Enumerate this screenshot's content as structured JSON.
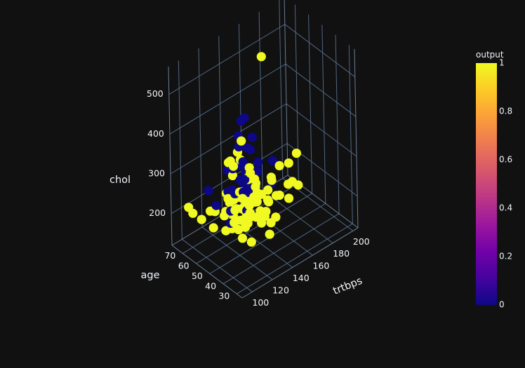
{
  "chart_data": {
    "type": "scatter",
    "title": "",
    "axes": {
      "x": {
        "label": "trtbps",
        "range": [
          90,
          205
        ],
        "ticks": [
          100,
          120,
          140,
          160,
          180,
          200
        ]
      },
      "y": {
        "label": "age",
        "range": [
          26,
          78
        ],
        "ticks": [
          30,
          40,
          50,
          60,
          70
        ]
      },
      "z": {
        "label": "chol",
        "range": [
          120,
          570
        ],
        "ticks": [
          200,
          300,
          400,
          500
        ]
      }
    },
    "grid": true,
    "colorbar": {
      "title": "output",
      "range": [
        0,
        1
      ],
      "ticks": [
        "0",
        "0.2",
        "0.4",
        "0.6",
        "0.8",
        "1"
      ],
      "colorscale": [
        "#0d0887",
        "#46039f",
        "#7201a8",
        "#9c179e",
        "#bd3786",
        "#d8576b",
        "#ed7953",
        "#fb9f3a",
        "#fdca26",
        "#f0f921"
      ]
    },
    "series": [
      {
        "value": 1,
        "color": "#f0f921",
        "points": [
          [
            150,
            54,
            564
          ],
          [
            110,
            46,
            370
          ],
          [
            130,
            58,
            344
          ],
          [
            120,
            41,
            350
          ],
          [
            130,
            55,
            380
          ],
          [
            115,
            52,
            360
          ],
          [
            150,
            42,
            320
          ],
          [
            130,
            65,
            300
          ],
          [
            128,
            44,
            315
          ],
          [
            108,
            38,
            312
          ],
          [
            130,
            56,
            330
          ],
          [
            140,
            57,
            292
          ],
          [
            120,
            39,
            290
          ],
          [
            150,
            48,
            268
          ],
          [
            112,
            52,
            270
          ],
          [
            140,
            58,
            265
          ],
          [
            130,
            45,
            290
          ],
          [
            130,
            62,
            275
          ],
          [
            140,
            58,
            260
          ],
          [
            130,
            44,
            255
          ],
          [
            120,
            37,
            249
          ],
          [
            138,
            50,
            250
          ],
          [
            160,
            56,
            240
          ],
          [
            120,
            57,
            235
          ],
          [
            140,
            43,
            242
          ],
          [
            130,
            51,
            238
          ],
          [
            120,
            52,
            232
          ],
          [
            150,
            60,
            230
          ],
          [
            145,
            41,
            255
          ],
          [
            125,
            45,
            222
          ],
          [
            110,
            43,
            218
          ],
          [
            120,
            53,
            226
          ],
          [
            135,
            64,
            210
          ],
          [
            135,
            34,
            234
          ],
          [
            118,
            42,
            224
          ],
          [
            140,
            54,
            226
          ],
          [
            112,
            62,
            212
          ],
          [
            130,
            67,
            217
          ],
          [
            160,
            50,
            210
          ],
          [
            102,
            71,
            200
          ],
          [
            130,
            35,
            196
          ],
          [
            125,
            58,
            189
          ],
          [
            150,
            61,
            180
          ],
          [
            138,
            40,
            200
          ],
          [
            118,
            44,
            209
          ],
          [
            132,
            51,
            206
          ],
          [
            115,
            50,
            210
          ],
          [
            140,
            46,
            198
          ],
          [
            120,
            60,
            205
          ],
          [
            108,
            52,
            233
          ],
          [
            125,
            48,
            214
          ],
          [
            130,
            57,
            246
          ],
          [
            120,
            45,
            228
          ],
          [
            110,
            64,
            211
          ],
          [
            150,
            51,
            236
          ],
          [
            138,
            65,
            200
          ],
          [
            100,
            63,
            208
          ],
          [
            180,
            52,
            280
          ],
          [
            115,
            44,
            186
          ],
          [
            108,
            51,
            198
          ],
          [
            172,
            45,
            230
          ],
          [
            128,
            60,
            222
          ],
          [
            150,
            57,
            168
          ],
          [
            105,
            58,
            192
          ],
          [
            140,
            71,
            150
          ],
          [
            160,
            59,
            175
          ],
          [
            112,
            35,
            204
          ],
          [
            132,
            39,
            240
          ],
          [
            125,
            46,
            248
          ],
          [
            94,
            68,
            235
          ],
          [
            180,
            58,
            240
          ],
          [
            128,
            54,
            215
          ],
          [
            135,
            59,
            234
          ],
          [
            118,
            54,
            180
          ],
          [
            160,
            43,
            220
          ],
          [
            120,
            46,
            244
          ],
          [
            124,
            52,
            197
          ],
          [
            170,
            51,
            220
          ],
          [
            145,
            52,
            230
          ],
          [
            165,
            44,
            252
          ],
          [
            130,
            54,
            216
          ],
          [
            130,
            41,
            209
          ]
        ]
      },
      {
        "value": 0,
        "color": "#0d0887",
        "points": [
          [
            130,
            55,
            430
          ],
          [
            140,
            60,
            410
          ],
          [
            135,
            61,
            370
          ],
          [
            130,
            57,
            360
          ],
          [
            150,
            62,
            341
          ],
          [
            140,
            56,
            340
          ],
          [
            130,
            54,
            330
          ],
          [
            145,
            62,
            322
          ],
          [
            125,
            58,
            310
          ],
          [
            150,
            47,
            320
          ],
          [
            140,
            51,
            298
          ],
          [
            135,
            59,
            300
          ],
          [
            140,
            63,
            285
          ],
          [
            150,
            58,
            288
          ],
          [
            130,
            53,
            288
          ],
          [
            140,
            60,
            280
          ],
          [
            130,
            66,
            278
          ],
          [
            140,
            68,
            275
          ],
          [
            132,
            56,
            270
          ],
          [
            140,
            60,
            265
          ],
          [
            120,
            58,
            260
          ],
          [
            110,
            65,
            260
          ],
          [
            140,
            53,
            255
          ],
          [
            136,
            55,
            250
          ],
          [
            150,
            67,
            245
          ],
          [
            128,
            59,
            240
          ],
          [
            135,
            58,
            236
          ],
          [
            112,
            61,
            230
          ],
          [
            125,
            48,
            230
          ],
          [
            150,
            66,
            228
          ],
          [
            145,
            60,
            224
          ],
          [
            140,
            57,
            218
          ],
          [
            135,
            58,
            210
          ],
          [
            114,
            52,
            205
          ],
          [
            117,
            54,
            226
          ],
          [
            140,
            64,
            244
          ],
          [
            136,
            67,
            217
          ],
          [
            160,
            56,
            224
          ]
        ]
      }
    ]
  }
}
